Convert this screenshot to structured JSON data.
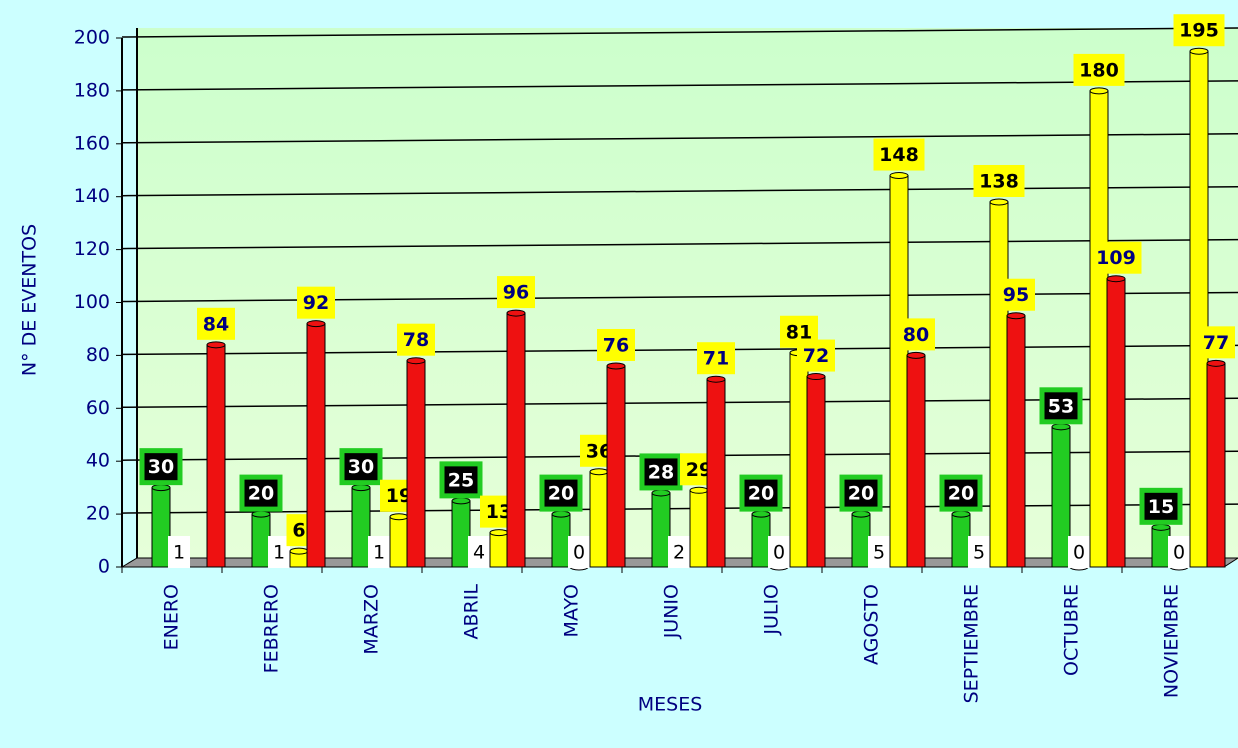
{
  "chart_data": {
    "type": "bar",
    "x_label": "MESES",
    "y_label": "N° DE EVENTOS",
    "categories": [
      "ENERO",
      "FEBRERO",
      "MARZO",
      "ABRIL",
      "MAYO",
      "JUNIO",
      "JULIO",
      "AGOSTO",
      "SEPTIEMBRE",
      "OCTUBRE",
      "NOVIEMBRE"
    ],
    "series": [
      {
        "color": "#22cc22",
        "values": [
          30,
          20,
          30,
          25,
          20,
          28,
          20,
          20,
          20,
          53,
          15
        ]
      },
      {
        "color": "#ffffff",
        "values": [
          1,
          1,
          1,
          4,
          0,
          2,
          0,
          5,
          5,
          0,
          0
        ]
      },
      {
        "color": "#ffff00",
        "values": [
          null,
          6,
          19,
          13,
          36,
          29,
          81,
          148,
          138,
          180,
          195
        ]
      },
      {
        "color": "#ee1111",
        "values": [
          84,
          92,
          78,
          96,
          76,
          71,
          72,
          80,
          95,
          109,
          77
        ]
      }
    ],
    "ylim": [
      0,
      200
    ],
    "yticks": [
      0,
      20,
      40,
      60,
      80,
      100,
      120,
      140,
      160,
      180,
      200
    ],
    "grid": true
  }
}
